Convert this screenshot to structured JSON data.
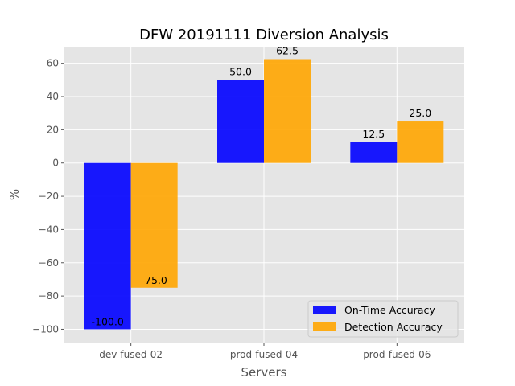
{
  "chart_data": {
    "type": "bar",
    "title": "DFW 20191111 Diversion Analysis",
    "xlabel": "Servers",
    "ylabel": "%",
    "categories": [
      "dev-fused-02",
      "prod-fused-04",
      "prod-fused-06"
    ],
    "series": [
      {
        "name": "On-Time Accuracy",
        "values": [
          -100.0,
          50.0,
          12.5
        ],
        "labels": [
          "-100.0",
          "50.0",
          "12.5"
        ],
        "color": "#0000ff"
      },
      {
        "name": "Detection Accuracy",
        "values": [
          -75.0,
          62.5,
          25.0
        ],
        "labels": [
          "-75.0",
          "62.5",
          "25.0"
        ],
        "color": "#ffa500"
      }
    ],
    "ylim": [
      -108,
      70
    ],
    "yticks": [
      -100,
      -80,
      -60,
      -40,
      -20,
      0,
      20,
      40,
      60
    ],
    "ytick_labels": [
      "−100",
      "−80",
      "−60",
      "−40",
      "−20",
      "0",
      "20",
      "40",
      "60"
    ],
    "grid": true,
    "legend_position": "lower-right",
    "style": {
      "background": "#e5e5e5",
      "grid_color": "#ffffff",
      "bar_opacity": 0.9
    }
  }
}
